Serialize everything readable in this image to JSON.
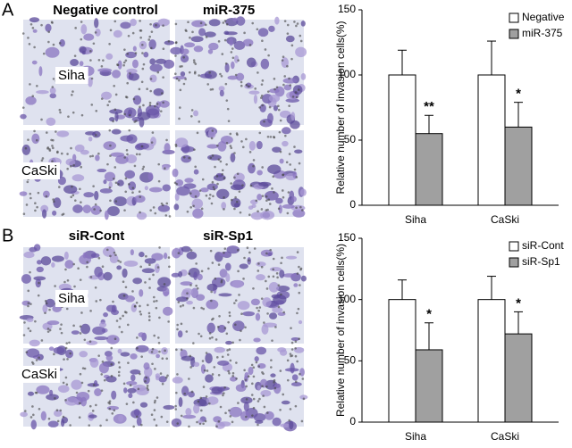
{
  "panels": [
    {
      "letter": "A",
      "columns": [
        "Negative control",
        "miR-375"
      ],
      "rows": [
        "Siha",
        "CaSki"
      ]
    },
    {
      "letter": "B",
      "columns": [
        "siR-Cont",
        "siR-Sp1"
      ],
      "rows": [
        "Siha",
        "CaSki"
      ]
    }
  ],
  "chart_data": [
    {
      "type": "bar",
      "ylabel": "Relative number of invasion cells(%)",
      "categories": [
        "Siha",
        "CaSki"
      ],
      "series": [
        {
          "name": "Negative",
          "color": "#ffffff",
          "values": [
            100,
            100
          ],
          "errors": [
            19,
            26
          ]
        },
        {
          "name": "miR-375",
          "color": "#a0a0a0",
          "values": [
            55,
            60
          ],
          "errors": [
            14,
            19
          ],
          "significance": [
            "**",
            "*"
          ]
        }
      ],
      "ylim": [
        0,
        150
      ],
      "yticks": [
        0,
        50,
        100,
        150
      ],
      "legend": "top-right"
    },
    {
      "type": "bar",
      "ylabel": "Relative number of invasion cells(%)",
      "categories": [
        "Siha",
        "CaSki"
      ],
      "series": [
        {
          "name": "siR-Cont",
          "color": "#ffffff",
          "values": [
            100,
            100
          ],
          "errors": [
            16,
            19
          ]
        },
        {
          "name": "siR-Sp1",
          "color": "#a0a0a0",
          "values": [
            59,
            72
          ],
          "errors": [
            22,
            18
          ],
          "significance": [
            "*",
            "*"
          ]
        }
      ],
      "ylim": [
        0,
        150
      ],
      "yticks": [
        0,
        50,
        100,
        150
      ],
      "legend": "top-right"
    }
  ]
}
